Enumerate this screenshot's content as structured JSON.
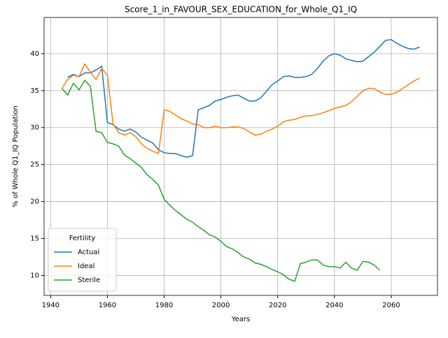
{
  "chart_data": {
    "type": "line",
    "title": "Score_1_in_FAVOUR_SEX_EDUCATION_for_Whole_Q1_IQ",
    "xlabel": "Years",
    "ylabel": "% of Whole Q1_IQ Population",
    "legend_title": "Fertility",
    "legend": "lower left",
    "grid": true,
    "x": [
      1944,
      1946,
      1948,
      1950,
      1952,
      1954,
      1956,
      1958,
      1960,
      1962,
      1964,
      1966,
      1968,
      1970,
      1972,
      1974,
      1976,
      1978,
      1980,
      1982,
      1984,
      1986,
      1988,
      1990,
      1992,
      1994,
      1996,
      1998,
      2000,
      2002,
      2004,
      2006,
      2008,
      2010,
      2012,
      2014,
      2016,
      2018,
      2020,
      2022,
      2024,
      2026,
      2028,
      2030,
      2032,
      2034,
      2036,
      2038,
      2040,
      2042,
      2044,
      2046,
      2048,
      2050,
      2052,
      2054,
      2056,
      2058,
      2060,
      2062,
      2064,
      2066,
      2068,
      2070
    ],
    "series": [
      {
        "name": "Actual",
        "color": "#1f77b4",
        "values": [
          null,
          36.8,
          37.2,
          36.9,
          37.4,
          37.4,
          37.8,
          38.3,
          30.7,
          30.4,
          29.8,
          29.5,
          29.8,
          29.4,
          28.7,
          28.3,
          27.9,
          27.0,
          26.6,
          26.5,
          26.5,
          26.2,
          26.0,
          26.2,
          32.4,
          32.7,
          33.0,
          33.6,
          33.8,
          34.1,
          34.3,
          34.4,
          34.0,
          33.6,
          33.6,
          34.0,
          34.9,
          35.8,
          36.3,
          36.9,
          37.0,
          36.8,
          36.8,
          36.9,
          37.2,
          38.0,
          39.0,
          39.7,
          40.0,
          39.8,
          39.3,
          39.1,
          38.9,
          39.0,
          39.6,
          40.2,
          41.0,
          41.8,
          41.9,
          41.4,
          41.0,
          40.7,
          40.6,
          40.9
        ]
      },
      {
        "name": "Ideal",
        "color": "#ff7f0e",
        "values": [
          35.3,
          36.5,
          37.1,
          36.9,
          38.6,
          37.5,
          36.5,
          38.0,
          37.1,
          30.5,
          29.3,
          29.0,
          29.3,
          28.8,
          27.8,
          27.2,
          26.8,
          26.5,
          32.4,
          32.2,
          31.7,
          31.2,
          30.9,
          30.5,
          30.4,
          30.0,
          30.0,
          30.2,
          30.0,
          30.0,
          30.1,
          30.1,
          29.9,
          29.4,
          29.0,
          29.1,
          29.5,
          29.8,
          30.2,
          30.8,
          31.0,
          31.1,
          31.4,
          31.6,
          31.6,
          31.8,
          32.0,
          32.3,
          32.6,
          32.8,
          33.0,
          33.5,
          34.2,
          35.0,
          35.3,
          35.3,
          34.8,
          34.5,
          34.5,
          34.8,
          35.3,
          35.8,
          36.3,
          36.7
        ]
      },
      {
        "name": "Sterile",
        "color": "#2ca02c",
        "values": [
          35.3,
          34.4,
          36.0,
          35.1,
          36.4,
          35.6,
          29.5,
          29.3,
          28.0,
          27.8,
          27.5,
          26.3,
          25.8,
          25.2,
          24.6,
          23.6,
          23.0,
          22.2,
          20.3,
          19.5,
          18.8,
          18.2,
          17.6,
          17.2,
          16.6,
          16.1,
          15.5,
          15.2,
          14.6,
          13.9,
          13.6,
          13.1,
          12.5,
          12.2,
          11.7,
          11.5,
          11.2,
          10.8,
          10.5,
          10.1,
          9.5,
          9.2,
          11.6,
          11.8,
          12.1,
          12.1,
          11.4,
          11.2,
          11.2,
          11.0,
          11.8,
          11.0,
          10.7,
          11.9,
          11.8,
          11.4,
          10.7,
          null,
          null,
          null,
          null,
          null,
          null,
          null
        ]
      }
    ],
    "xlim": [
      1937.7,
      2076.3
    ],
    "xticks": [
      1940,
      1960,
      1980,
      2000,
      2020,
      2040,
      2060
    ],
    "ylim": [
      7.3,
      44.9
    ],
    "yticks": [
      10,
      15,
      20,
      25,
      30,
      35,
      40
    ]
  }
}
